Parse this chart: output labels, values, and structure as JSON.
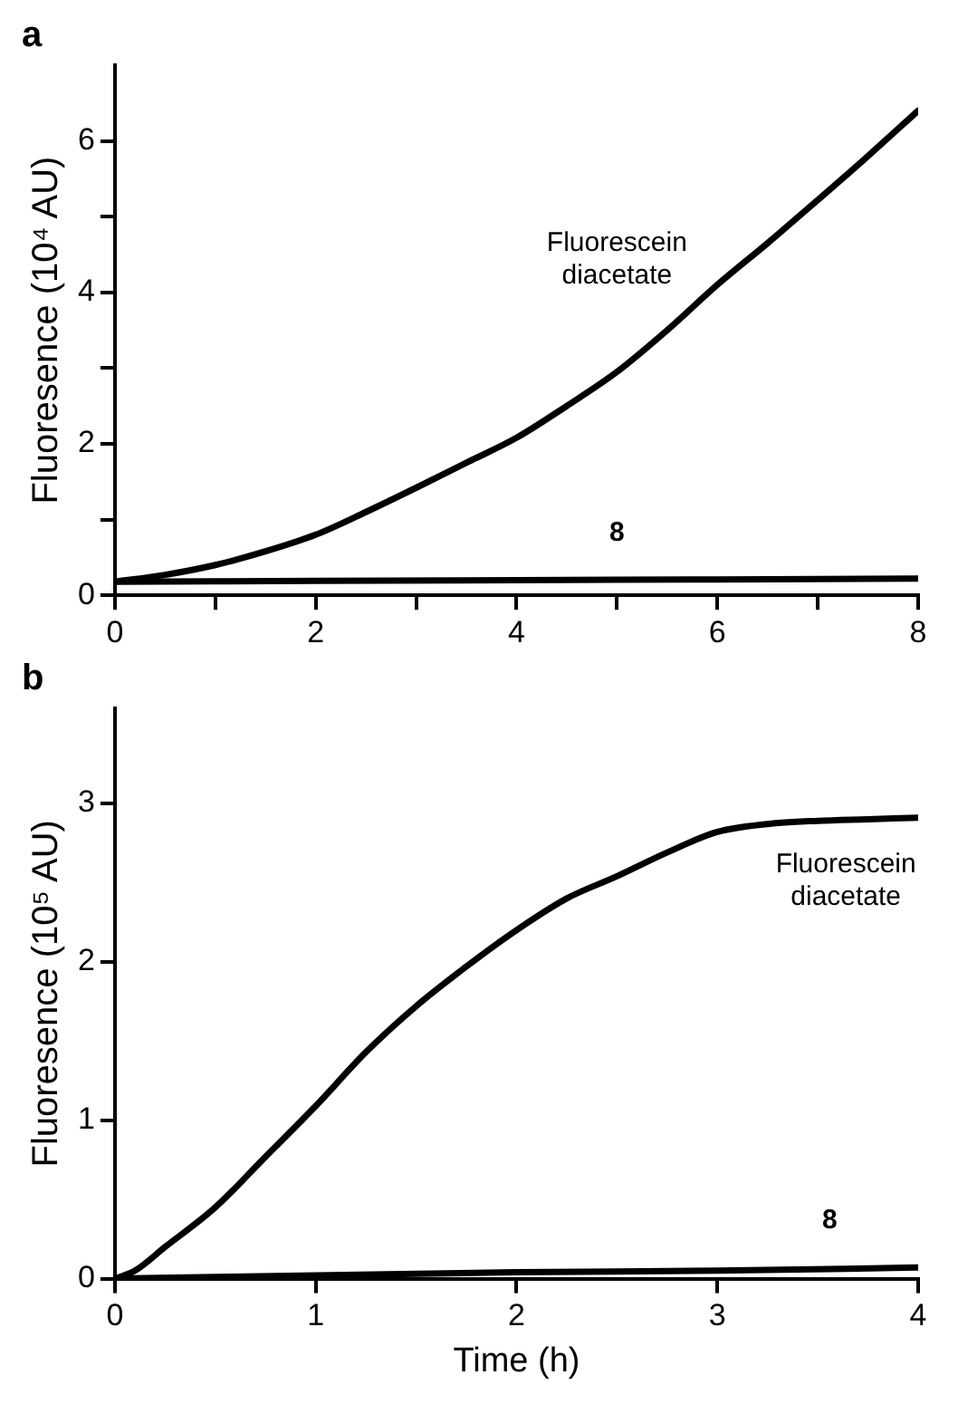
{
  "chart_data": [
    {
      "type": "line",
      "title": "a",
      "ylabel": "Fluoresence (10⁴ AU)",
      "xlim": [
        0,
        8
      ],
      "ylim": [
        0,
        7
      ],
      "xticks": [
        0,
        {
          "value": 1,
          "label": null
        },
        2,
        {
          "value": 3,
          "label": null
        },
        4,
        {
          "value": 5,
          "label": null
        },
        6,
        {
          "value": 7,
          "label": null
        },
        8
      ],
      "yticks": [
        0,
        {
          "value": 1,
          "label": null
        },
        2,
        {
          "value": 3,
          "label": null
        },
        4,
        {
          "value": 5,
          "label": null
        },
        6
      ],
      "grid": false,
      "legend": false,
      "marker": "none",
      "line_style": "solid",
      "series": [
        {
          "name": "Fluorescein diacetate",
          "color": "#000000",
          "x": [
            0,
            0.5,
            1,
            1.5,
            2,
            2.5,
            3,
            3.5,
            4,
            4.5,
            5,
            5.5,
            6,
            6.5,
            7,
            7.5,
            8
          ],
          "values": [
            0.18,
            0.27,
            0.4,
            0.58,
            0.8,
            1.1,
            1.42,
            1.75,
            2.08,
            2.5,
            2.95,
            3.5,
            4.1,
            4.65,
            5.22,
            5.8,
            6.4
          ]
        },
        {
          "name": "8",
          "color": "#000000",
          "x": [
            0,
            2,
            4,
            6,
            8
          ],
          "values": [
            0.18,
            0.19,
            0.2,
            0.21,
            0.22
          ]
        }
      ]
    },
    {
      "type": "line",
      "title": "b",
      "xlabel": "Time (h)",
      "ylabel": "Fluoresence (10⁵ AU)",
      "xlim": [
        0,
        4
      ],
      "ylim": [
        0,
        3.6
      ],
      "xticks": [
        0,
        1,
        2,
        3,
        4
      ],
      "yticks": [
        0,
        1,
        2,
        3
      ],
      "grid": false,
      "legend": false,
      "marker": "none",
      "line_style": "solid",
      "series": [
        {
          "name": "Fluorescein diacetate",
          "color": "#000000",
          "x": [
            0,
            0.1,
            0.25,
            0.5,
            0.75,
            1,
            1.25,
            1.5,
            1.75,
            2,
            2.25,
            2.5,
            2.75,
            3,
            3.25,
            3.5,
            3.75,
            4
          ],
          "values": [
            0,
            0.05,
            0.2,
            0.45,
            0.77,
            1.09,
            1.43,
            1.72,
            1.97,
            2.2,
            2.4,
            2.54,
            2.69,
            2.82,
            2.87,
            2.89,
            2.9,
            2.91
          ]
        },
        {
          "name": "8",
          "color": "#000000",
          "x": [
            0,
            1,
            2,
            3,
            4
          ],
          "values": [
            0,
            0.02,
            0.04,
            0.05,
            0.07
          ]
        }
      ]
    }
  ]
}
